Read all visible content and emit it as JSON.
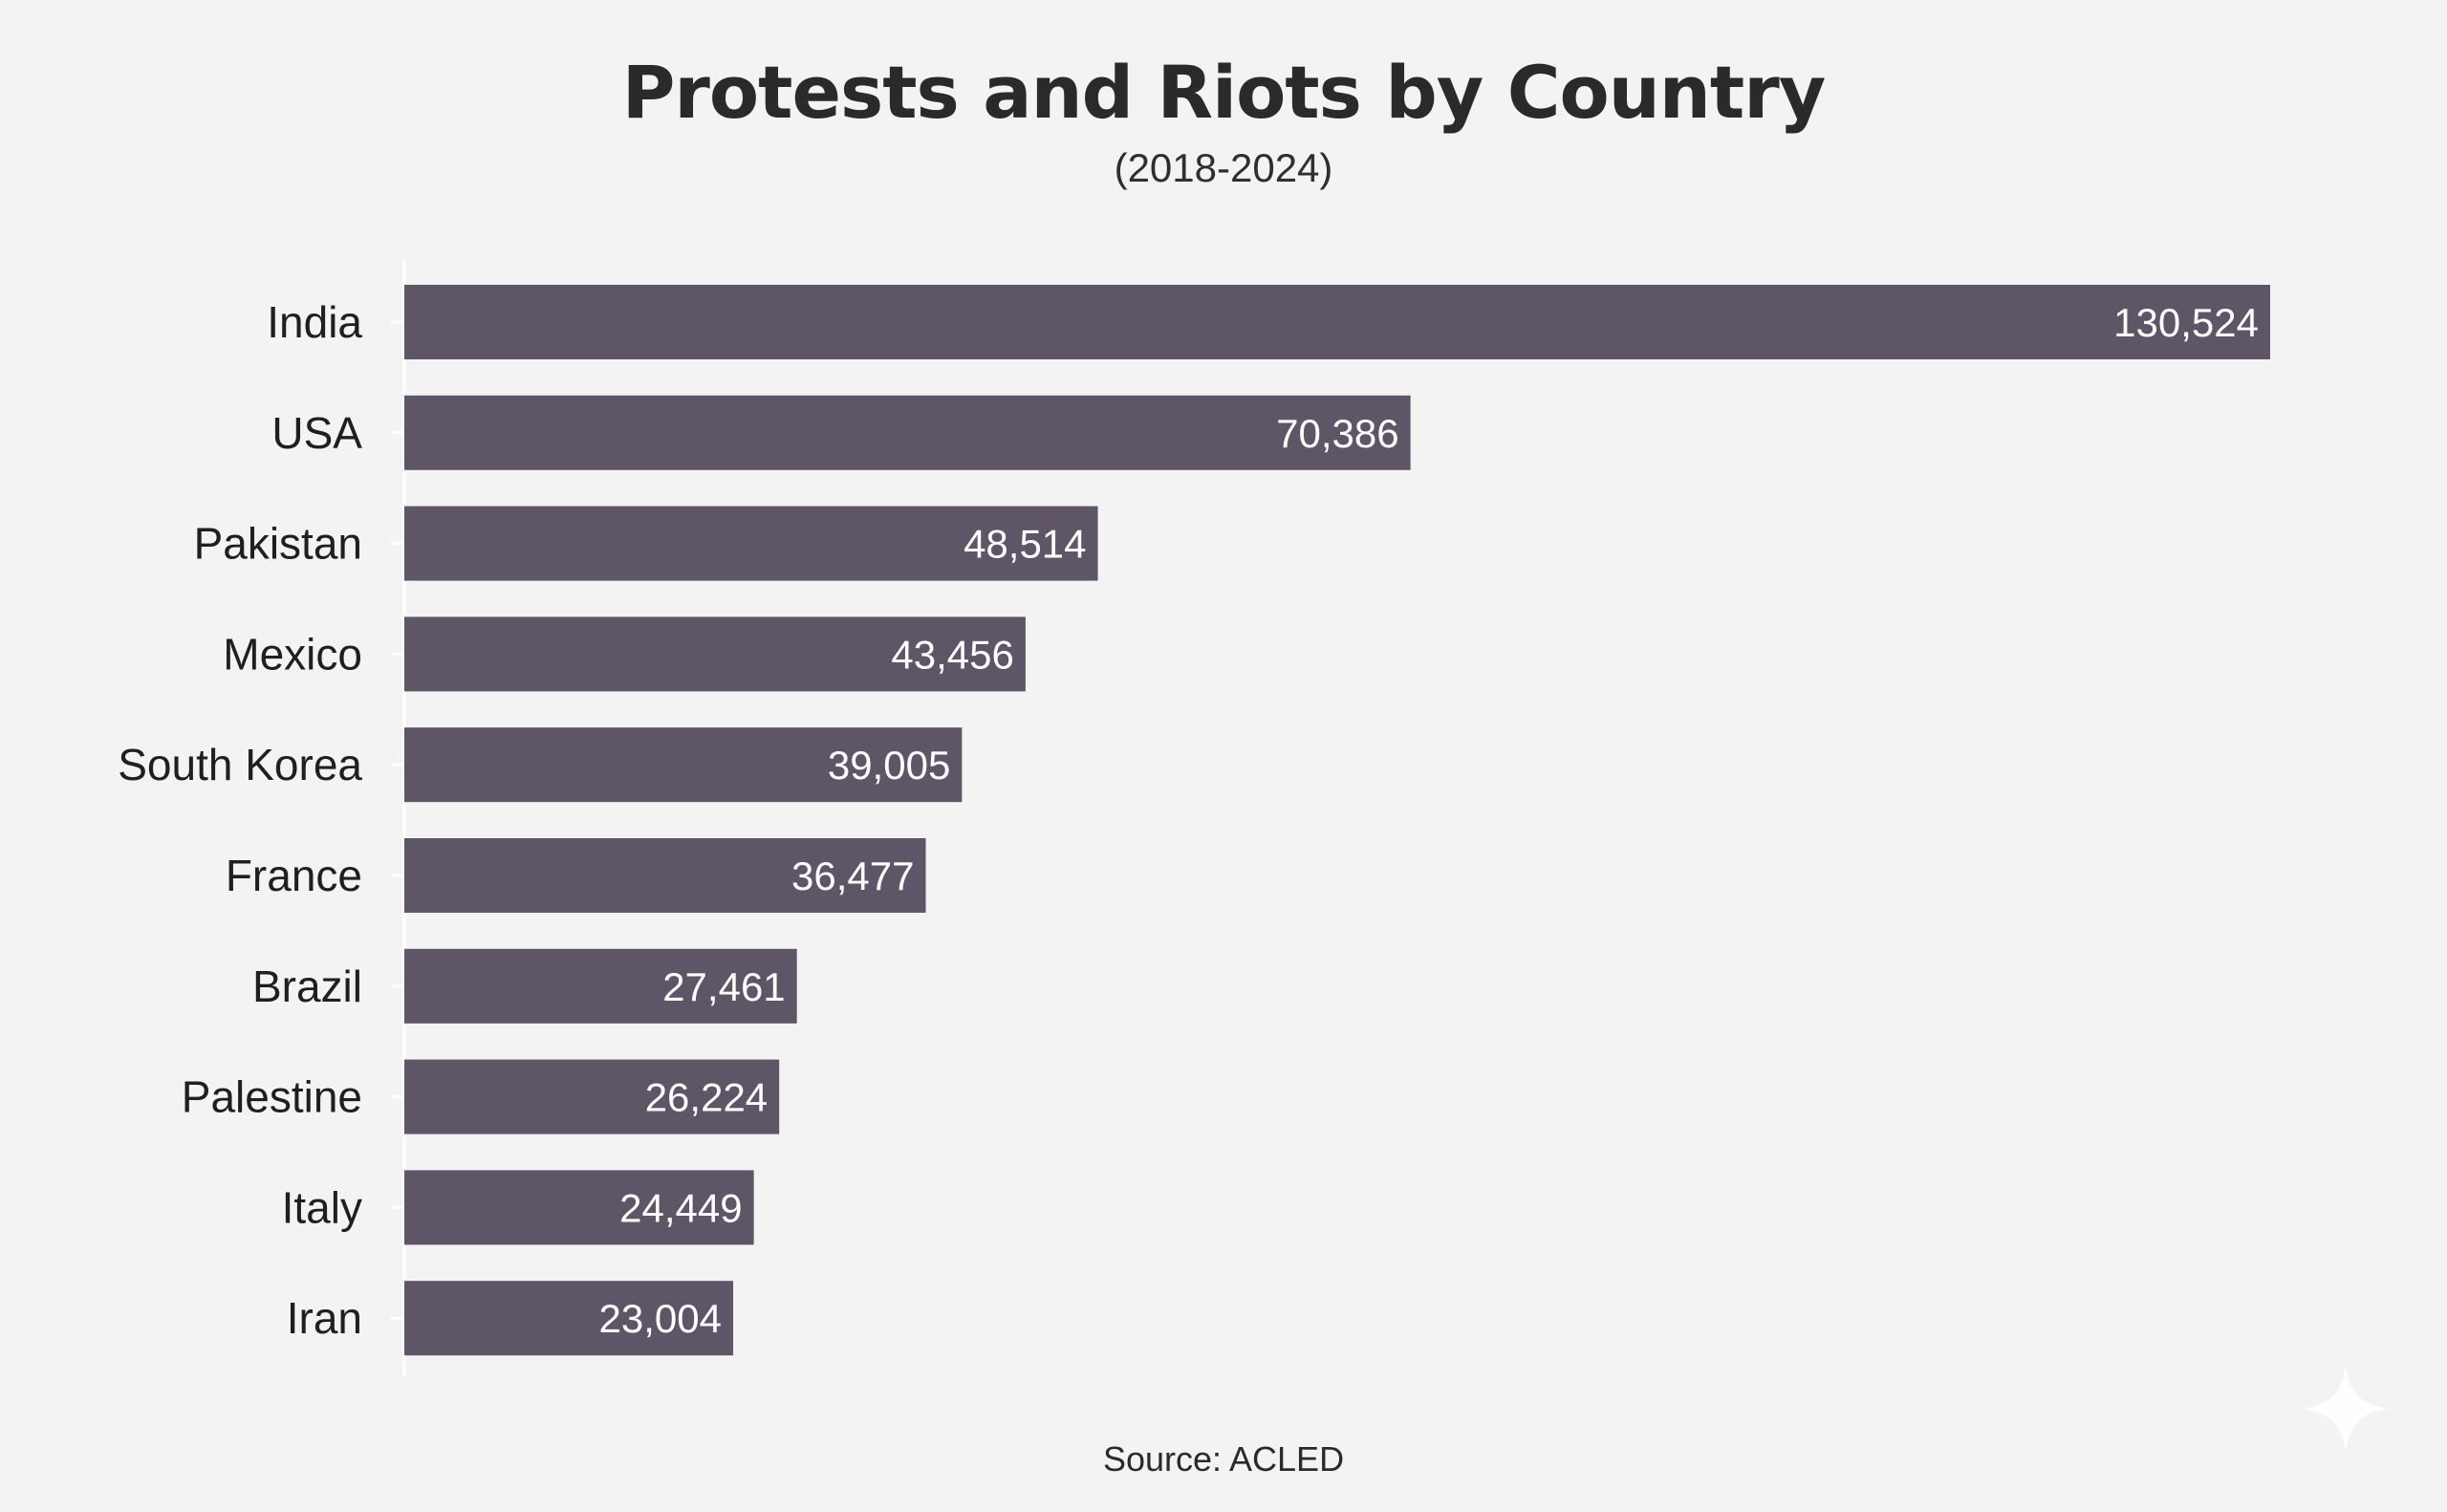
{
  "chart_data": {
    "type": "bar",
    "orientation": "horizontal",
    "title": "Protests and Riots by Country",
    "subtitle": "(2018-2024)",
    "source": "Source: ACLED",
    "categories": [
      "India",
      "USA",
      "Pakistan",
      "Mexico",
      "South Korea",
      "France",
      "Brazil",
      "Palestine",
      "Italy",
      "Iran"
    ],
    "values": [
      130524,
      70386,
      48514,
      43456,
      39005,
      36477,
      27461,
      26224,
      24449,
      23004
    ],
    "value_labels": [
      "130,524",
      "70,386",
      "48,514",
      "43,456",
      "39,005",
      "36,477",
      "27,461",
      "26,224",
      "24,449",
      "23,004"
    ],
    "xlim": [
      0,
      130524
    ],
    "grid": false,
    "legend": "none",
    "bar_color": "#5e5567",
    "label_color": "#ffffff"
  }
}
